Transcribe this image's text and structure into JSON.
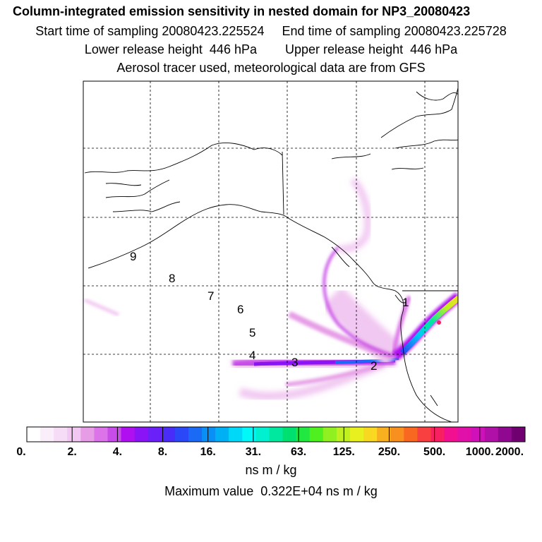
{
  "header": {
    "title": "Column-integrated emission sensitivity in nested domain for NP3_20080423",
    "sampling_line": "Start time of sampling 20080423.225524     End time of sampling 20080423.225728",
    "release_line": "Lower release height  446 hPa        Upper release height  446 hPa",
    "tracer_line": "Aerosol tracer used, meteorological data are from GFS"
  },
  "map": {
    "point_labels": [
      "1",
      "2",
      "3",
      "4",
      "5",
      "6",
      "7",
      "8",
      "9"
    ],
    "grid": true,
    "land_color": "#ffffff",
    "coast_color": "#000000"
  },
  "colorbar": {
    "labels": [
      "0.",
      "2.",
      "4.",
      "8.",
      "16.",
      "31.",
      "63.",
      "125.",
      "250.",
      "500.",
      "1000.",
      "2000."
    ],
    "colors": [
      "#ffffff",
      "#fbeefb",
      "#f6dcf6",
      "#f1c8f1",
      "#e69de6",
      "#dc73e8",
      "#c84de8",
      "#b010f0",
      "#8a14f5",
      "#6a20f8",
      "#4a2cf8",
      "#2a48f8",
      "#1a6af5",
      "#0a90f5",
      "#00b0f5",
      "#00d8f8",
      "#00f8f8",
      "#00f0d0",
      "#00e8a0",
      "#00e070",
      "#20e840",
      "#50f020",
      "#90f020",
      "#c0f020",
      "#e8f020",
      "#f8d820",
      "#f8b020",
      "#f89020",
      "#f86820",
      "#f84040",
      "#f82060",
      "#f01090",
      "#e010a8",
      "#d010b8",
      "#b010a8",
      "#900890",
      "#700070"
    ],
    "units": "ns m / kg"
  },
  "max_value": "Maximum value  0.322E+04 ns m / kg"
}
